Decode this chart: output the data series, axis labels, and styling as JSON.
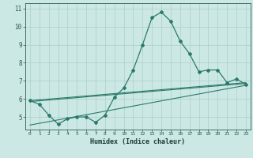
{
  "x": [
    0,
    1,
    2,
    3,
    4,
    5,
    6,
    7,
    8,
    9,
    10,
    11,
    12,
    13,
    14,
    15,
    16,
    17,
    18,
    19,
    20,
    21,
    22,
    23
  ],
  "line_main": [
    5.9,
    5.7,
    5.1,
    4.6,
    4.9,
    5.0,
    5.0,
    4.7,
    5.1,
    6.1,
    6.6,
    7.6,
    9.0,
    10.5,
    10.8,
    10.3,
    9.2,
    8.5,
    7.5,
    7.6,
    7.6,
    6.9,
    7.1,
    6.8
  ],
  "trend1_x": [
    0,
    23
  ],
  "trend1_y": [
    5.85,
    6.85
  ],
  "trend2_x": [
    0,
    23
  ],
  "trend2_y": [
    5.9,
    6.9
  ],
  "trend3_x": [
    0,
    23
  ],
  "trend3_y": [
    4.55,
    6.75
  ],
  "color": "#2a7a6b",
  "bg_color": "#cce8e4",
  "grid_color": "#aacfca",
  "xlabel": "Humidex (Indice chaleur)",
  "ylim": [
    4.3,
    11.3
  ],
  "xlim": [
    -0.5,
    23.5
  ],
  "yticks": [
    5,
    6,
    7,
    8,
    9,
    10,
    11
  ],
  "xticks": [
    0,
    1,
    2,
    3,
    4,
    5,
    6,
    7,
    8,
    9,
    10,
    11,
    12,
    13,
    14,
    15,
    16,
    17,
    18,
    19,
    20,
    21,
    22,
    23
  ]
}
